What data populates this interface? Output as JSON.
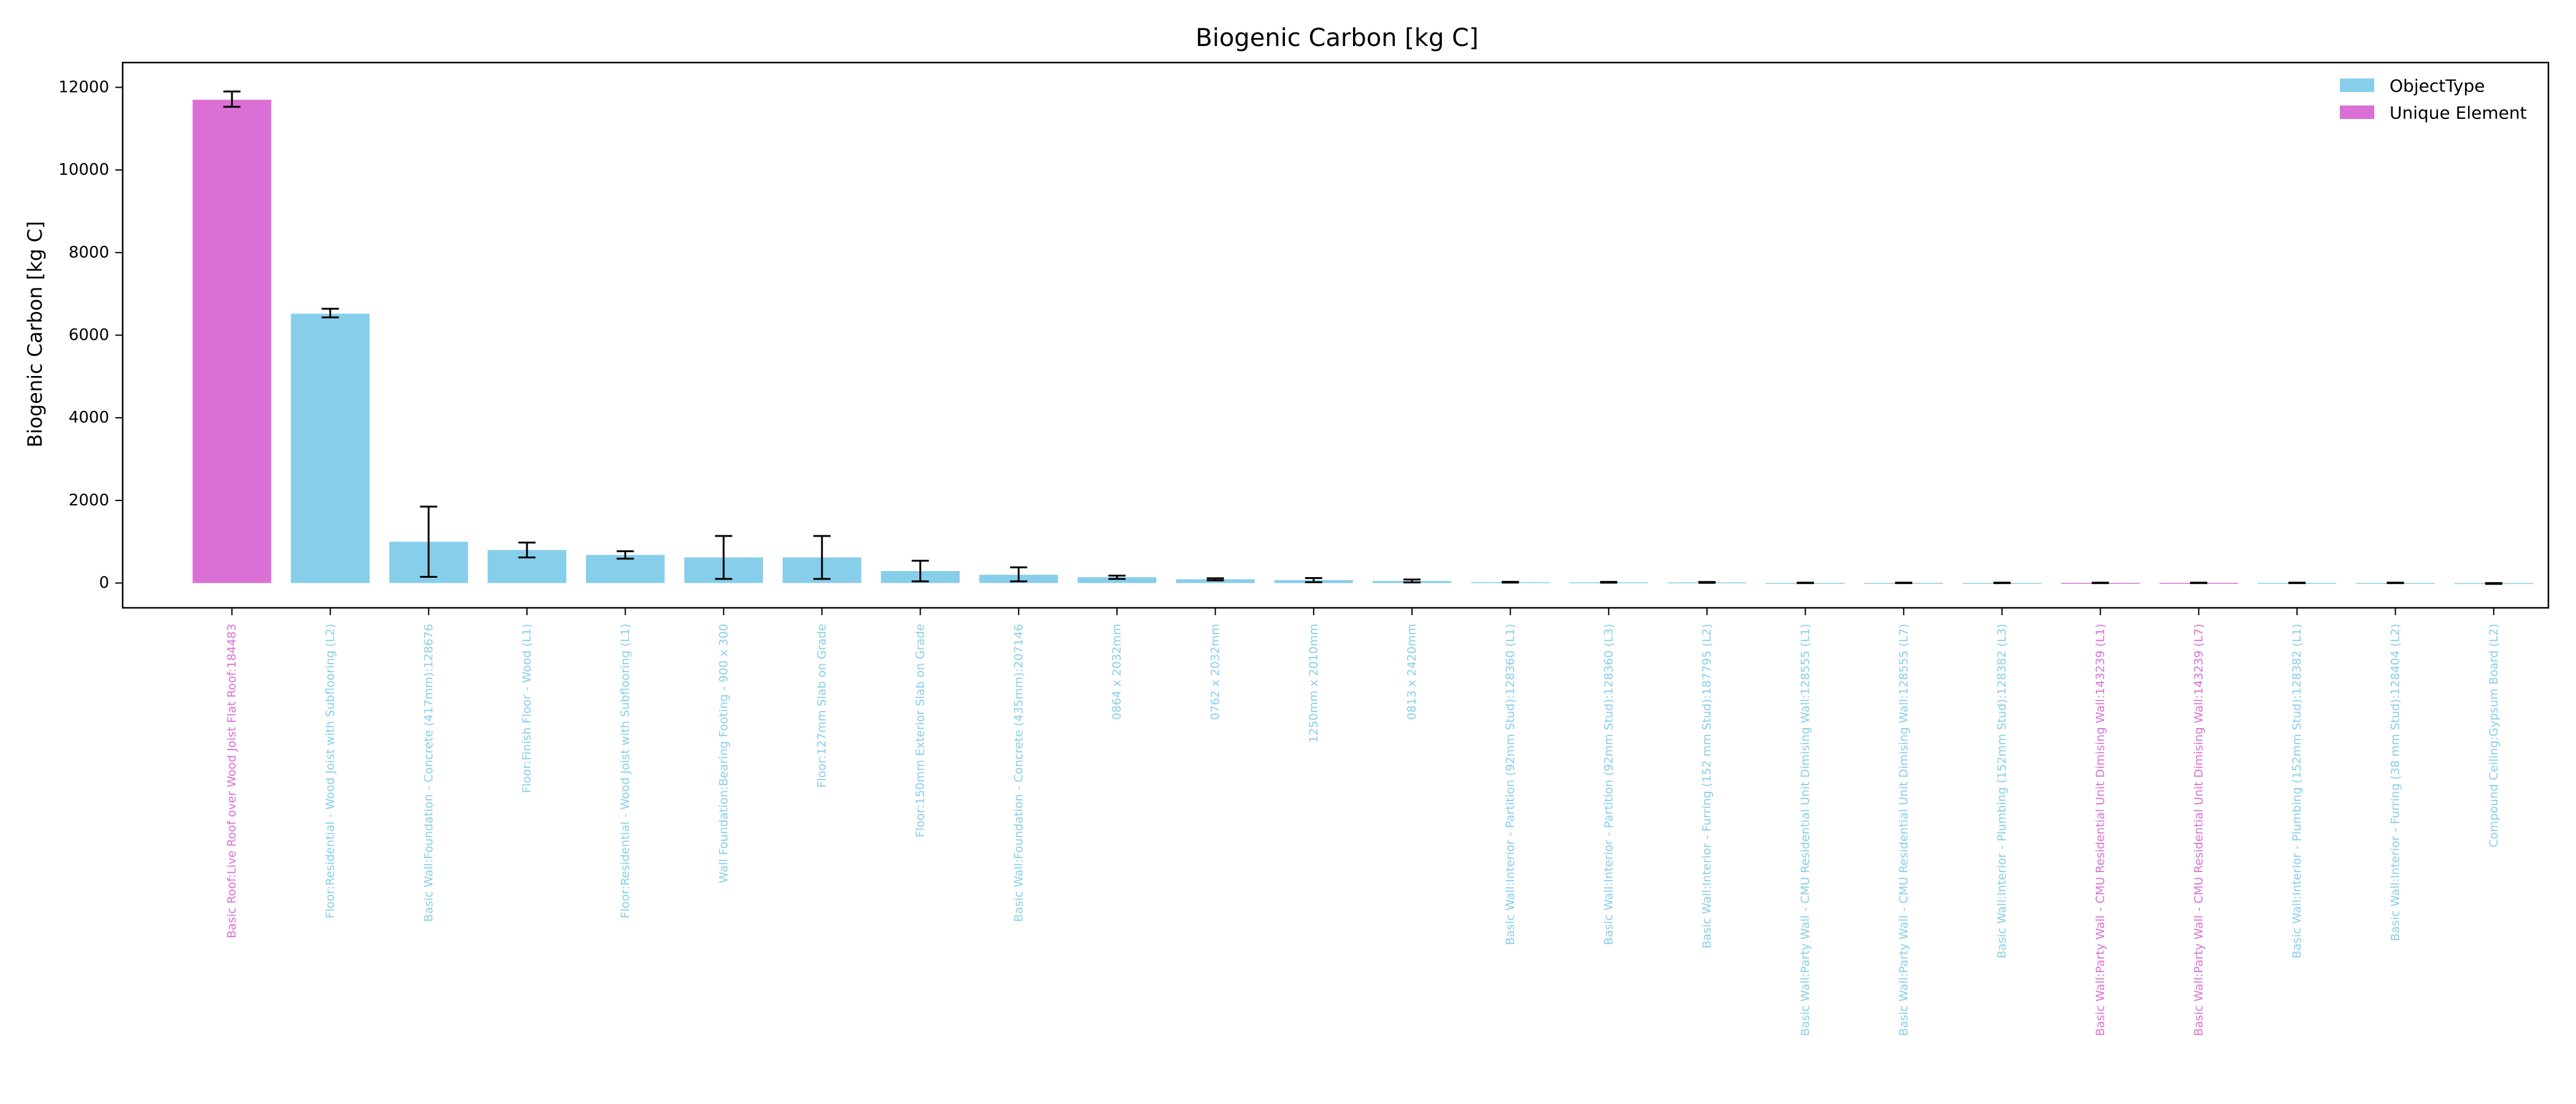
{
  "chart_data": {
    "type": "bar",
    "title": "Biogenic Carbon [kg C]",
    "xlabel": "",
    "ylabel": "Biogenic Carbon [kg C]",
    "ylim": [
      -600,
      12600
    ],
    "yticks": [
      0,
      2000,
      4000,
      6000,
      8000,
      10000,
      12000
    ],
    "grid": false,
    "legend_position": "top-right",
    "colors": {
      "ObjectType": "#87ceeb",
      "Unique Element": "#da70d6"
    },
    "legend": [
      {
        "label": "ObjectType",
        "color": "#87ceeb"
      },
      {
        "label": "Unique Element",
        "color": "#da70d6"
      }
    ],
    "bars": [
      {
        "label": "Basic Roof:Live Roof over Wood Joist Flat Roof:184483",
        "value": 11700,
        "err_low": 11530,
        "err_high": 11900,
        "group": "Unique Element"
      },
      {
        "label": "Floor:Residential - Wood Joist with Subflooring (L2)",
        "value": 6520,
        "err_low": 6430,
        "err_high": 6640,
        "group": "ObjectType"
      },
      {
        "label": "Basic Wall:Foundation - Concrete (417mm):128676",
        "value": 1000,
        "err_low": 150,
        "err_high": 1850,
        "group": "ObjectType"
      },
      {
        "label": "Floor:Finish Floor - Wood (L1)",
        "value": 800,
        "err_low": 620,
        "err_high": 980,
        "group": "ObjectType"
      },
      {
        "label": "Floor:Residential - Wood Joist with Subflooring (L1)",
        "value": 680,
        "err_low": 590,
        "err_high": 770,
        "group": "ObjectType"
      },
      {
        "label": "Wall Foundation:Bearing Footing - 900 x 300",
        "value": 620,
        "err_low": 100,
        "err_high": 1140,
        "group": "ObjectType"
      },
      {
        "label": "Floor:127mm Slab on Grade",
        "value": 620,
        "err_low": 100,
        "err_high": 1140,
        "group": "ObjectType"
      },
      {
        "label": "Floor:150mm Exterior Slab on Grade",
        "value": 290,
        "err_low": 40,
        "err_high": 540,
        "group": "ObjectType"
      },
      {
        "label": "Basic Wall:Foundation - Concrete (435mm):207146",
        "value": 200,
        "err_low": 40,
        "err_high": 380,
        "group": "ObjectType"
      },
      {
        "label": "0864 x 2032mm",
        "value": 140,
        "err_low": 100,
        "err_high": 180,
        "group": "ObjectType"
      },
      {
        "label": "0762 x 2032mm",
        "value": 90,
        "err_low": 65,
        "err_high": 115,
        "group": "ObjectType"
      },
      {
        "label": "1250mm x 2010mm",
        "value": 70,
        "err_low": 20,
        "err_high": 120,
        "group": "ObjectType"
      },
      {
        "label": "0813 x 2420mm",
        "value": 50,
        "err_low": 15,
        "err_high": 85,
        "group": "ObjectType"
      },
      {
        "label": "Basic Wall:Interior - Partition (92mm Stud):128360 (L1)",
        "value": 20,
        "err_low": 10,
        "err_high": 30,
        "group": "ObjectType"
      },
      {
        "label": "Basic Wall:Interior - Partition (92mm Stud):128360 (L3)",
        "value": 18,
        "err_low": 8,
        "err_high": 28,
        "group": "ObjectType"
      },
      {
        "label": "Basic Wall:Interior - Furring (152 mm Stud):187795 (L2)",
        "value": 15,
        "err_low": 5,
        "err_high": 25,
        "group": "ObjectType"
      },
      {
        "label": "Basic Wall:Party Wall - CMU Residential Unit Dimising Wall:128555 (L1)",
        "value": 3,
        "err_low": -2,
        "err_high": 8,
        "group": "ObjectType"
      },
      {
        "label": "Basic Wall:Party Wall - CMU Residential Unit Dimising Wall:128555 (L7)",
        "value": 3,
        "err_low": -2,
        "err_high": 8,
        "group": "ObjectType"
      },
      {
        "label": "Basic Wall:Interior - Plumbing (152mm Stud):128382 (L3)",
        "value": 3,
        "err_low": -2,
        "err_high": 8,
        "group": "ObjectType"
      },
      {
        "label": "Basic Wall:Party Wall - CMU Residential Unit Dimising Wall:143239 (L1)",
        "value": 3,
        "err_low": -2,
        "err_high": 8,
        "group": "Unique Element"
      },
      {
        "label": "Basic Wall:Party Wall - CMU Residential Unit Dimising Wall:143239 (L7)",
        "value": 3,
        "err_low": -2,
        "err_high": 8,
        "group": "Unique Element"
      },
      {
        "label": "Basic Wall:Interior - Plumbing (152mm Stud):128382 (L1)",
        "value": 3,
        "err_low": -2,
        "err_high": 8,
        "group": "ObjectType"
      },
      {
        "label": "Basic Wall:Interior - Furring (38 mm Stud):128404 (L2)",
        "value": 3,
        "err_low": -2,
        "err_high": 8,
        "group": "ObjectType"
      },
      {
        "label": "Compound Ceiling:Gypsum Board (L2)",
        "value": -10,
        "err_low": -20,
        "err_high": 0,
        "group": "ObjectType"
      }
    ]
  }
}
